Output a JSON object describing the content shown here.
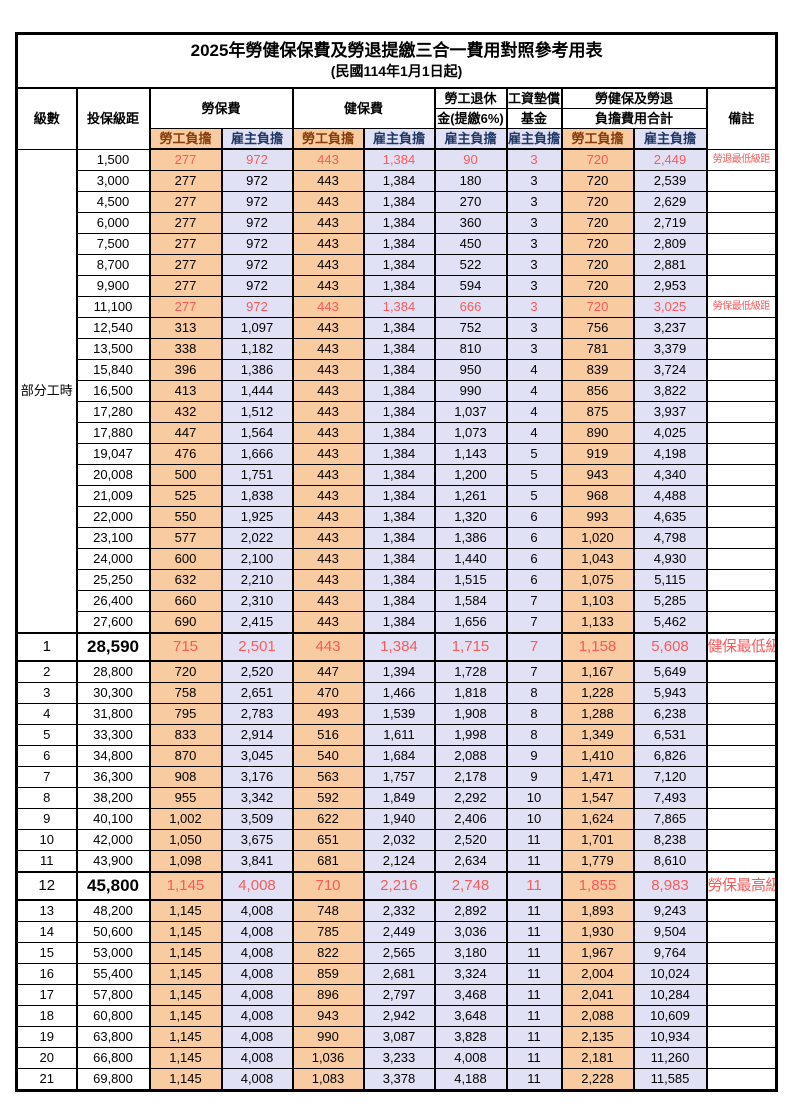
{
  "title": "2025年勞健保保費及勞退提繳三合一費用對照參考用表",
  "subtitle": "(民國114年1月1日起)",
  "colors": {
    "employee_bg": "#F8CBA0",
    "employer_bg": "#E1E1F5",
    "highlight_red": "#FA5A5A"
  },
  "table": {
    "header": {
      "level": "級數",
      "salary": "投保級距",
      "labor_insurance": "勞保費",
      "health_insurance": "健保費",
      "pension_l1": "勞工退休",
      "pension_l2": "金(提繳6%)",
      "wage_fund_l1": "工資墊償",
      "wage_fund_l2": "基金",
      "combined_l1": "勞健保及勞退",
      "combined_l2": "負擔費用合計",
      "remarks": "備註",
      "employee_burden": "勞工負擔",
      "employer_burden": "雇主負擔"
    },
    "part_time_label": "部分工時",
    "rows": [
      {
        "level": "",
        "salary": "1,500",
        "cells": [
          "277",
          "972",
          "443",
          "1,384",
          "90",
          "3",
          "720",
          "2,449"
        ],
        "remark": "勞退最低級距",
        "red": true,
        "em": false
      },
      {
        "level": "",
        "salary": "3,000",
        "cells": [
          "277",
          "972",
          "443",
          "1,384",
          "180",
          "3",
          "720",
          "2,539"
        ],
        "remark": "",
        "red": false,
        "em": false
      },
      {
        "level": "",
        "salary": "4,500",
        "cells": [
          "277",
          "972",
          "443",
          "1,384",
          "270",
          "3",
          "720",
          "2,629"
        ],
        "remark": "",
        "red": false,
        "em": false
      },
      {
        "level": "",
        "salary": "6,000",
        "cells": [
          "277",
          "972",
          "443",
          "1,384",
          "360",
          "3",
          "720",
          "2,719"
        ],
        "remark": "",
        "red": false,
        "em": false
      },
      {
        "level": "",
        "salary": "7,500",
        "cells": [
          "277",
          "972",
          "443",
          "1,384",
          "450",
          "3",
          "720",
          "2,809"
        ],
        "remark": "",
        "red": false,
        "em": false
      },
      {
        "level": "",
        "salary": "8,700",
        "cells": [
          "277",
          "972",
          "443",
          "1,384",
          "522",
          "3",
          "720",
          "2,881"
        ],
        "remark": "",
        "red": false,
        "em": false
      },
      {
        "level": "",
        "salary": "9,900",
        "cells": [
          "277",
          "972",
          "443",
          "1,384",
          "594",
          "3",
          "720",
          "2,953"
        ],
        "remark": "",
        "red": false,
        "em": false
      },
      {
        "level": "",
        "salary": "11,100",
        "cells": [
          "277",
          "972",
          "443",
          "1,384",
          "666",
          "3",
          "720",
          "3,025"
        ],
        "remark": "勞保最低級距",
        "red": true,
        "em": false
      },
      {
        "level": "",
        "salary": "12,540",
        "cells": [
          "313",
          "1,097",
          "443",
          "1,384",
          "752",
          "3",
          "756",
          "3,237"
        ],
        "remark": "",
        "red": false,
        "em": false
      },
      {
        "level": "",
        "salary": "13,500",
        "cells": [
          "338",
          "1,182",
          "443",
          "1,384",
          "810",
          "3",
          "781",
          "3,379"
        ],
        "remark": "",
        "red": false,
        "em": false
      },
      {
        "level": "",
        "salary": "15,840",
        "cells": [
          "396",
          "1,386",
          "443",
          "1,384",
          "950",
          "4",
          "839",
          "3,724"
        ],
        "remark": "",
        "red": false,
        "em": false
      },
      {
        "level": "",
        "salary": "16,500",
        "cells": [
          "413",
          "1,444",
          "443",
          "1,384",
          "990",
          "4",
          "856",
          "3,822"
        ],
        "remark": "",
        "red": false,
        "em": false
      },
      {
        "level": "",
        "salary": "17,280",
        "cells": [
          "432",
          "1,512",
          "443",
          "1,384",
          "1,037",
          "4",
          "875",
          "3,937"
        ],
        "remark": "",
        "red": false,
        "em": false
      },
      {
        "level": "",
        "salary": "17,880",
        "cells": [
          "447",
          "1,564",
          "443",
          "1,384",
          "1,073",
          "4",
          "890",
          "4,025"
        ],
        "remark": "",
        "red": false,
        "em": false
      },
      {
        "level": "",
        "salary": "19,047",
        "cells": [
          "476",
          "1,666",
          "443",
          "1,384",
          "1,143",
          "5",
          "919",
          "4,198"
        ],
        "remark": "",
        "red": false,
        "em": false
      },
      {
        "level": "",
        "salary": "20,008",
        "cells": [
          "500",
          "1,751",
          "443",
          "1,384",
          "1,200",
          "5",
          "943",
          "4,340"
        ],
        "remark": "",
        "red": false,
        "em": false
      },
      {
        "level": "",
        "salary": "21,009",
        "cells": [
          "525",
          "1,838",
          "443",
          "1,384",
          "1,261",
          "5",
          "968",
          "4,488"
        ],
        "remark": "",
        "red": false,
        "em": false
      },
      {
        "level": "",
        "salary": "22,000",
        "cells": [
          "550",
          "1,925",
          "443",
          "1,384",
          "1,320",
          "6",
          "993",
          "4,635"
        ],
        "remark": "",
        "red": false,
        "em": false
      },
      {
        "level": "",
        "salary": "23,100",
        "cells": [
          "577",
          "2,022",
          "443",
          "1,384",
          "1,386",
          "6",
          "1,020",
          "4,798"
        ],
        "remark": "",
        "red": false,
        "em": false
      },
      {
        "level": "",
        "salary": "24,000",
        "cells": [
          "600",
          "2,100",
          "443",
          "1,384",
          "1,440",
          "6",
          "1,043",
          "4,930"
        ],
        "remark": "",
        "red": false,
        "em": false
      },
      {
        "level": "",
        "salary": "25,250",
        "cells": [
          "632",
          "2,210",
          "443",
          "1,384",
          "1,515",
          "6",
          "1,075",
          "5,115"
        ],
        "remark": "",
        "red": false,
        "em": false
      },
      {
        "level": "",
        "salary": "26,400",
        "cells": [
          "660",
          "2,310",
          "443",
          "1,384",
          "1,584",
          "7",
          "1,103",
          "5,285"
        ],
        "remark": "",
        "red": false,
        "em": false
      },
      {
        "level": "",
        "salary": "27,600",
        "cells": [
          "690",
          "2,415",
          "443",
          "1,384",
          "1,656",
          "7",
          "1,133",
          "5,462"
        ],
        "remark": "",
        "red": false,
        "em": false
      },
      {
        "level": "1",
        "salary": "28,590",
        "cells": [
          "715",
          "2,501",
          "443",
          "1,384",
          "1,715",
          "7",
          "1,158",
          "5,608"
        ],
        "remark": "健保最低級距",
        "red": true,
        "em": true
      },
      {
        "level": "2",
        "salary": "28,800",
        "cells": [
          "720",
          "2,520",
          "447",
          "1,394",
          "1,728",
          "7",
          "1,167",
          "5,649"
        ],
        "remark": "",
        "red": false,
        "em": false
      },
      {
        "level": "3",
        "salary": "30,300",
        "cells": [
          "758",
          "2,651",
          "470",
          "1,466",
          "1,818",
          "8",
          "1,228",
          "5,943"
        ],
        "remark": "",
        "red": false,
        "em": false
      },
      {
        "level": "4",
        "salary": "31,800",
        "cells": [
          "795",
          "2,783",
          "493",
          "1,539",
          "1,908",
          "8",
          "1,288",
          "6,238"
        ],
        "remark": "",
        "red": false,
        "em": false
      },
      {
        "level": "5",
        "salary": "33,300",
        "cells": [
          "833",
          "2,914",
          "516",
          "1,611",
          "1,998",
          "8",
          "1,349",
          "6,531"
        ],
        "remark": "",
        "red": false,
        "em": false
      },
      {
        "level": "6",
        "salary": "34,800",
        "cells": [
          "870",
          "3,045",
          "540",
          "1,684",
          "2,088",
          "9",
          "1,410",
          "6,826"
        ],
        "remark": "",
        "red": false,
        "em": false
      },
      {
        "level": "7",
        "salary": "36,300",
        "cells": [
          "908",
          "3,176",
          "563",
          "1,757",
          "2,178",
          "9",
          "1,471",
          "7,120"
        ],
        "remark": "",
        "red": false,
        "em": false
      },
      {
        "level": "8",
        "salary": "38,200",
        "cells": [
          "955",
          "3,342",
          "592",
          "1,849",
          "2,292",
          "10",
          "1,547",
          "7,493"
        ],
        "remark": "",
        "red": false,
        "em": false
      },
      {
        "level": "9",
        "salary": "40,100",
        "cells": [
          "1,002",
          "3,509",
          "622",
          "1,940",
          "2,406",
          "10",
          "1,624",
          "7,865"
        ],
        "remark": "",
        "red": false,
        "em": false
      },
      {
        "level": "10",
        "salary": "42,000",
        "cells": [
          "1,050",
          "3,675",
          "651",
          "2,032",
          "2,520",
          "11",
          "1,701",
          "8,238"
        ],
        "remark": "",
        "red": false,
        "em": false
      },
      {
        "level": "11",
        "salary": "43,900",
        "cells": [
          "1,098",
          "3,841",
          "681",
          "2,124",
          "2,634",
          "11",
          "1,779",
          "8,610"
        ],
        "remark": "",
        "red": false,
        "em": false
      },
      {
        "level": "12",
        "salary": "45,800",
        "cells": [
          "1,145",
          "4,008",
          "710",
          "2,216",
          "2,748",
          "11",
          "1,855",
          "8,983"
        ],
        "remark": "勞保最高級距",
        "red": true,
        "em": true
      },
      {
        "level": "13",
        "salary": "48,200",
        "cells": [
          "1,145",
          "4,008",
          "748",
          "2,332",
          "2,892",
          "11",
          "1,893",
          "9,243"
        ],
        "remark": "",
        "red": false,
        "em": false
      },
      {
        "level": "14",
        "salary": "50,600",
        "cells": [
          "1,145",
          "4,008",
          "785",
          "2,449",
          "3,036",
          "11",
          "1,930",
          "9,504"
        ],
        "remark": "",
        "red": false,
        "em": false
      },
      {
        "level": "15",
        "salary": "53,000",
        "cells": [
          "1,145",
          "4,008",
          "822",
          "2,565",
          "3,180",
          "11",
          "1,967",
          "9,764"
        ],
        "remark": "",
        "red": false,
        "em": false
      },
      {
        "level": "16",
        "salary": "55,400",
        "cells": [
          "1,145",
          "4,008",
          "859",
          "2,681",
          "3,324",
          "11",
          "2,004",
          "10,024"
        ],
        "remark": "",
        "red": false,
        "em": false
      },
      {
        "level": "17",
        "salary": "57,800",
        "cells": [
          "1,145",
          "4,008",
          "896",
          "2,797",
          "3,468",
          "11",
          "2,041",
          "10,284"
        ],
        "remark": "",
        "red": false,
        "em": false
      },
      {
        "level": "18",
        "salary": "60,800",
        "cells": [
          "1,145",
          "4,008",
          "943",
          "2,942",
          "3,648",
          "11",
          "2,088",
          "10,609"
        ],
        "remark": "",
        "red": false,
        "em": false
      },
      {
        "level": "19",
        "salary": "63,800",
        "cells": [
          "1,145",
          "4,008",
          "990",
          "3,087",
          "3,828",
          "11",
          "2,135",
          "10,934"
        ],
        "remark": "",
        "red": false,
        "em": false
      },
      {
        "level": "20",
        "salary": "66,800",
        "cells": [
          "1,145",
          "4,008",
          "1,036",
          "3,233",
          "4,008",
          "11",
          "2,181",
          "11,260"
        ],
        "remark": "",
        "red": false,
        "em": false
      },
      {
        "level": "21",
        "salary": "69,800",
        "cells": [
          "1,145",
          "4,008",
          "1,083",
          "3,378",
          "4,188",
          "11",
          "2,228",
          "11,585"
        ],
        "remark": "",
        "red": false,
        "em": false
      }
    ]
  }
}
